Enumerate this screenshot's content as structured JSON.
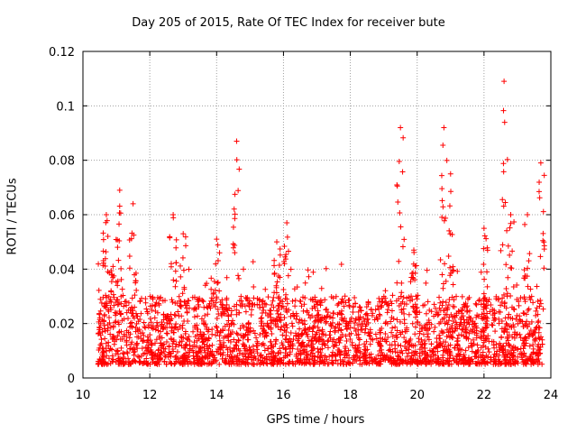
{
  "chart_data": {
    "type": "scatter",
    "title": "Day 205 of 2015, Rate Of TEC Index for receiver bute",
    "xlabel": "GPS time / hours",
    "ylabel": "ROTI / TECUs",
    "xlim": [
      10,
      24
    ],
    "ylim": [
      0,
      0.12
    ],
    "xticks": [
      10,
      12,
      14,
      16,
      18,
      20,
      22,
      24
    ],
    "yticks": [
      0,
      0.02,
      0.04,
      0.06,
      0.08,
      0.1,
      0.12
    ],
    "xtick_labels": [
      "10",
      "12",
      "14",
      "16",
      "18",
      "20",
      "22",
      "24"
    ],
    "ytick_labels": [
      "0",
      "0.02",
      "0.04",
      "0.06",
      "0.08",
      "0.1",
      "0.12"
    ],
    "grid": true,
    "marker": "+",
    "color": "#ff0000",
    "data_range_x": [
      10.45,
      23.75
    ],
    "baseline": {
      "typical_min": 0.005,
      "typical_max": 0.03
    },
    "peaks": [
      {
        "x": 10.7,
        "y": 0.06
      },
      {
        "x": 10.9,
        "y": 0.041
      },
      {
        "x": 11.1,
        "y": 0.069
      },
      {
        "x": 11.5,
        "y": 0.064
      },
      {
        "x": 12.7,
        "y": 0.06
      },
      {
        "x": 13.0,
        "y": 0.053
      },
      {
        "x": 14.0,
        "y": 0.051
      },
      {
        "x": 14.6,
        "y": 0.087
      },
      {
        "x": 15.8,
        "y": 0.05
      },
      {
        "x": 16.1,
        "y": 0.057
      },
      {
        "x": 19.5,
        "y": 0.092
      },
      {
        "x": 19.9,
        "y": 0.047
      },
      {
        "x": 20.8,
        "y": 0.092
      },
      {
        "x": 21.0,
        "y": 0.075
      },
      {
        "x": 22.0,
        "y": 0.055
      },
      {
        "x": 22.6,
        "y": 0.109
      },
      {
        "x": 22.8,
        "y": 0.06
      },
      {
        "x": 23.3,
        "y": 0.06
      },
      {
        "x": 23.7,
        "y": 0.079
      }
    ]
  }
}
